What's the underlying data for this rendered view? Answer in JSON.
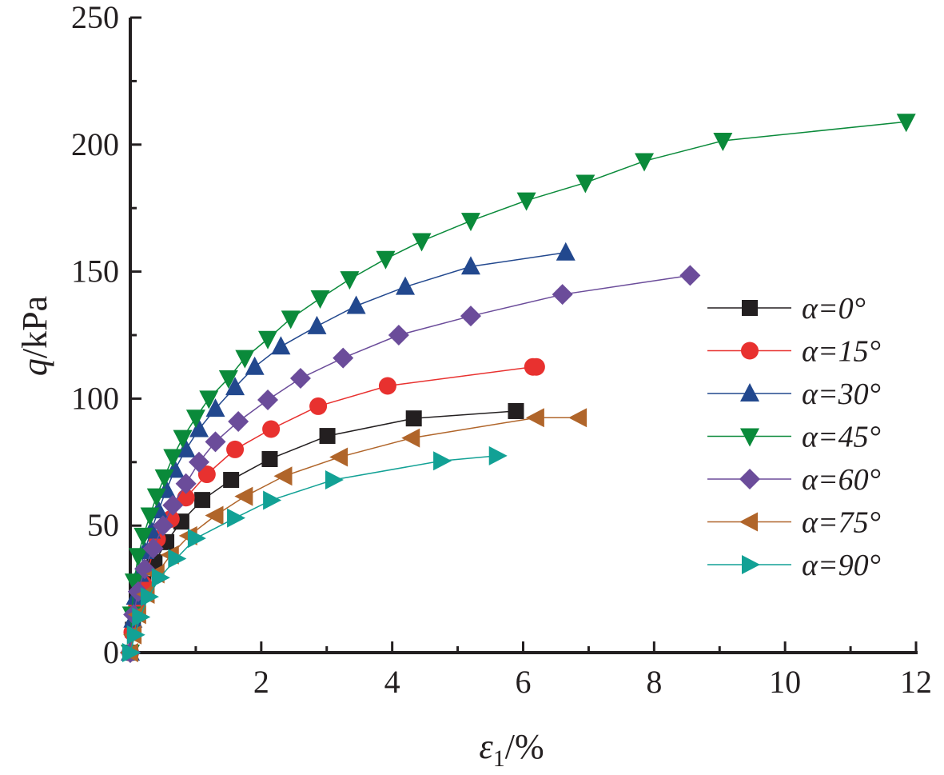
{
  "chart_data": {
    "type": "line",
    "title": "",
    "xlabel": {
      "symbol": "ε",
      "subscript": "1",
      "unit": "/%"
    },
    "ylabel": {
      "symbol": "q",
      "unit": "/kPa"
    },
    "xlim": [
      0,
      12
    ],
    "ylim": [
      0,
      250
    ],
    "xticks": [
      "2",
      "4",
      "6",
      "8",
      "10",
      "12"
    ],
    "yticks": [
      "0",
      "50",
      "100",
      "150",
      "200",
      "250"
    ],
    "grid": false,
    "legend_position": "right",
    "series": [
      {
        "name": "α=0°",
        "marker": "square",
        "color": "#231f20",
        "x": [
          0,
          0.04,
          0.1,
          0.2,
          0.37,
          0.55,
          0.78,
          1.1,
          1.54,
          2.13,
          3.01,
          4.33,
          5.89
        ],
        "y": [
          0,
          9,
          18,
          27,
          35.6,
          43.5,
          51.6,
          60.1,
          68,
          76.2,
          85.3,
          92.2,
          95.1
        ]
      },
      {
        "name": "α=15°",
        "marker": "circle",
        "color": "#e8312f",
        "x": [
          0,
          0.03,
          0.1,
          0.2,
          0.41,
          0.62,
          0.85,
          1.17,
          1.6,
          2.15,
          2.87,
          3.93,
          6.15,
          6.2
        ],
        "y": [
          0,
          8,
          18,
          27,
          44.7,
          52.6,
          61,
          70.2,
          80,
          88,
          97,
          105,
          112.5,
          112.5
        ]
      },
      {
        "name": "α=30°",
        "marker": "triangle-up",
        "color": "#22488e",
        "x": [
          0,
          0.04,
          0.08,
          0.14,
          0.22,
          0.32,
          0.43,
          0.55,
          0.68,
          0.85,
          1.05,
          1.3,
          1.6,
          1.9,
          2.3,
          2.85,
          3.45,
          4.2,
          5.2,
          6.65
        ],
        "y": [
          0,
          13,
          22,
          31,
          40,
          48,
          56,
          64,
          72,
          80,
          88,
          96,
          104.5,
          112.5,
          120.5,
          128.5,
          136.5,
          144,
          152,
          157.5
        ]
      },
      {
        "name": "α=45°",
        "marker": "triangle-down",
        "color": "#0a8a3a",
        "x": [
          0,
          0.02,
          0.06,
          0.12,
          0.2,
          0.3,
          0.4,
          0.52,
          0.65,
          0.8,
          1.0,
          1.2,
          1.5,
          1.75,
          2.1,
          2.45,
          2.9,
          3.35,
          3.9,
          4.45,
          5.2,
          6.05,
          6.95,
          7.85,
          9.05,
          11.85
        ],
        "y": [
          0,
          15,
          28,
          38,
          46,
          54,
          61.5,
          69,
          77,
          84.5,
          92.5,
          100,
          108,
          116,
          123.5,
          131.5,
          139.5,
          147,
          155,
          162,
          170,
          178,
          185,
          193.5,
          201.5,
          209
        ]
      },
      {
        "name": "α=60°",
        "marker": "diamond",
        "color": "#6b4c9a",
        "x": [
          0,
          0.05,
          0.12,
          0.22,
          0.35,
          0.5,
          0.65,
          0.85,
          1.05,
          1.3,
          1.65,
          2.1,
          2.6,
          3.25,
          4.1,
          5.2,
          6.6,
          8.55
        ],
        "y": [
          0,
          15,
          24,
          33,
          41,
          50,
          58,
          66.5,
          75,
          83,
          91,
          99.5,
          108,
          116,
          125,
          132.5,
          141,
          148.5
        ]
      },
      {
        "name": "α=75°",
        "marker": "triangle-left",
        "color": "#b0652a",
        "x": [
          0,
          0.05,
          0.12,
          0.25,
          0.4,
          0.62,
          0.9,
          1.3,
          1.75,
          2.35,
          3.2,
          4.3,
          6.2,
          6.85
        ],
        "y": [
          0,
          7,
          15,
          23,
          31,
          38.5,
          46,
          54,
          61.5,
          69.5,
          77,
          84.5,
          92.5,
          92.5
        ]
      },
      {
        "name": "α=90°",
        "marker": "triangle-right",
        "color": "#12a195",
        "x": [
          0,
          0.07,
          0.15,
          0.28,
          0.45,
          0.7,
          1.0,
          1.6,
          2.15,
          3.1,
          4.75,
          5.6
        ],
        "y": [
          0,
          7,
          14,
          22,
          29.5,
          37,
          45,
          53,
          60,
          68,
          75.5,
          77.5
        ]
      }
    ]
  }
}
